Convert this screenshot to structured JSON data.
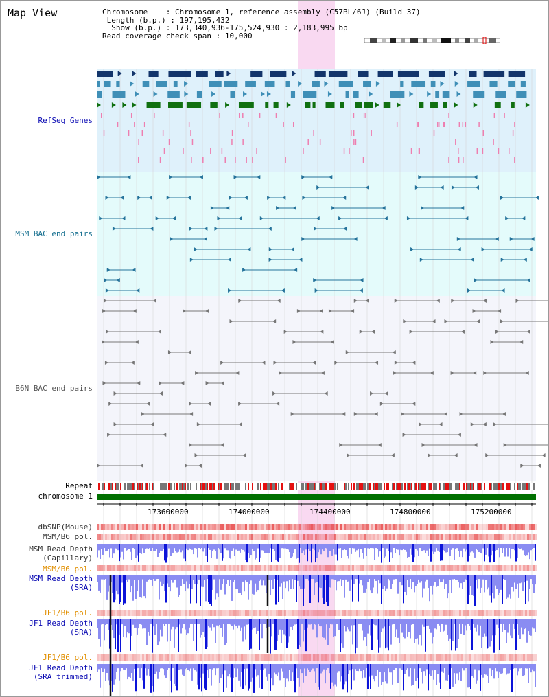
{
  "title": "Map View",
  "info": {
    "chromosome_key": "Chromosome",
    "chromosome_val": "Chromosome 1, reference assembly (C57BL/6J) (Build 37)",
    "length_key": "Length (b.p.)",
    "length_val": "197,195,432",
    "show_key": "Show (b.p.)",
    "show_val": "173,340,936-175,524,930 : 2,183,995 bp",
    "span_key": "Read coverage check span",
    "span_val": "10,000"
  },
  "tracks": {
    "refseq": "RefSeq Genes",
    "msm_bac": "MSM BAC end pairs",
    "b6n_bac": "B6N BAC end pairs",
    "repeat": "Repeat",
    "chromosome": "chromosome 1",
    "dbsnp": "dbSNP(Mouse)",
    "msm_b6_pol_1": "MSM/B6 pol.",
    "msm_read_depth_cap_1": "MSM Read Depth",
    "msm_read_depth_cap_2": "(Capillary)",
    "msm_b6_pol_2": "MSM/B6 pol.",
    "msm_read_depth_sra_1": "MSM Read Depth",
    "msm_read_depth_sra_2": "(SRA)",
    "jf1_b6_pol_1": "JF1/B6 pol.",
    "jf1_read_depth_sra_1": "JF1 Read Depth",
    "jf1_read_depth_sra_2": "(SRA)",
    "jf1_b6_pol_2": "JF1/B6 pol.",
    "jf1_read_depth_trim_1": "JF1 Read Depth",
    "jf1_read_depth_trim_2": "(SRA trimmed)"
  },
  "ruler": {
    "ticks": [
      "173600000",
      "174000000",
      "174400000",
      "174800000",
      "175200000"
    ]
  },
  "colors": {
    "highlight": "#f9d9f1",
    "refseq_bg": "#dff1fb",
    "msm_bg": "#e4fbfb",
    "b6n_bg": "#f4f5fb",
    "gene_dark": "#13356b",
    "gene_mid": "#3f8fb7",
    "gene_green": "#107010",
    "msm_feature": "#25739b",
    "b6n_feature": "#777777",
    "chromosome": "#007000",
    "depth_dark": "#0c14d8",
    "depth_light": "#8a8cf2",
    "label_blue": "#0a0ab3",
    "label_teal": "#177090",
    "label_orange": "#e18f00"
  }
}
